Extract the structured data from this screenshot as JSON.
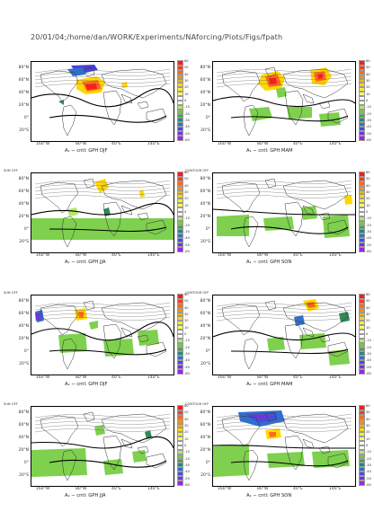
{
  "header": {
    "path": "20/01/04;/home/dan/WORK/Experiments/NAforcing/Plots/Figs/fpath"
  },
  "colors": {
    "scale": [
      "#ff1a1a",
      "#ff3b1e",
      "#ff6a1a",
      "#ff8f10",
      "#ffb400",
      "#ffd700",
      "#ffef20",
      "#ffff6e",
      "#ffffff",
      "#ffffff",
      "#b8e66a",
      "#72c94a",
      "#3aa63a",
      "#1e8a7a",
      "#2f6fd0",
      "#3f4fe0",
      "#6a35e8",
      "#a020f0"
    ],
    "green": "#7ed04e",
    "darkgreen": "#2e8b57"
  },
  "lat_labels": [
    "80°N",
    "60°N",
    "40°N",
    "20°N",
    "0°",
    "20°S"
  ],
  "lon_labels": [
    "160°W",
    "80°W",
    "40°E",
    "140°E"
  ],
  "cbar_labels": [
    "60",
    "55",
    "50",
    "45",
    "40",
    "35",
    "30",
    "25",
    "20",
    "15",
    "10",
    "5",
    "0",
    "-5",
    "-10",
    "-15",
    "-20",
    "-25",
    "-30",
    "-35",
    "-40",
    "-45",
    "-50",
    "-55",
    "-60"
  ],
  "panels": [
    {
      "caption": "A₁ − cntl: GPH DJF",
      "footer": ""
    },
    {
      "caption": "A₁ − cntl: GPH MAM",
      "footer": ""
    },
    {
      "caption": "A₁ − cntl: GPH JJA",
      "footer": "SUN OFF"
    },
    {
      "caption": "A₁ − cntl: GPH SON",
      "footer": "CONTOUR OFF"
    },
    {
      "caption": "A₂ − cntl: GPH DJF",
      "footer": "SUN OFF"
    },
    {
      "caption": "A₂ − cntl: GPH MAM",
      "footer": "CONTOUR OFF"
    },
    {
      "caption": "A₂ − cntl: GPH JJA",
      "footer": "SUN OFF"
    },
    {
      "caption": "A₂ − cntl: GPH SON",
      "footer": "CONTOUR OFF"
    }
  ],
  "chart_data": {
    "type": "heatmap",
    "title": "",
    "xlabel": "longitude",
    "ylabel": "latitude",
    "lat_range": [
      -30,
      80
    ],
    "panels": 8
  }
}
